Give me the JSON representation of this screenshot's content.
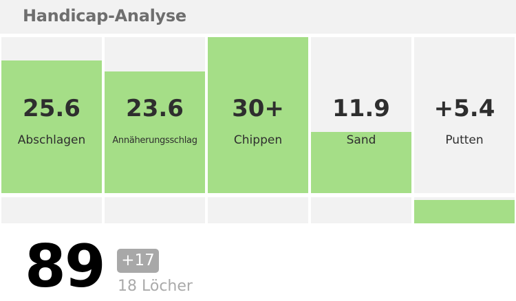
{
  "header": {
    "title": "Handicap-Analyse"
  },
  "categories": [
    {
      "value": "25.6",
      "label": "Abschlagen",
      "fill": 0.85,
      "bottom_fill": 0
    },
    {
      "value": "23.6",
      "label": "Annäherungsschlag",
      "fill": 0.78,
      "bottom_fill": 0
    },
    {
      "value": "30+",
      "label": "Chippen",
      "fill": 1.0,
      "bottom_fill": 0
    },
    {
      "value": "11.9",
      "label": "Sand",
      "fill": 0.39,
      "bottom_fill": 0
    },
    {
      "value": "+5.4",
      "label": "Putten",
      "fill": 0,
      "bottom_fill": 0.9
    }
  ],
  "summary": {
    "score": "89",
    "delta": "+17",
    "holes": "18 Löcher"
  },
  "colors": {
    "accent": "#a5de87",
    "panel": "#f2f2f2",
    "badge": "#a8a8a8"
  }
}
